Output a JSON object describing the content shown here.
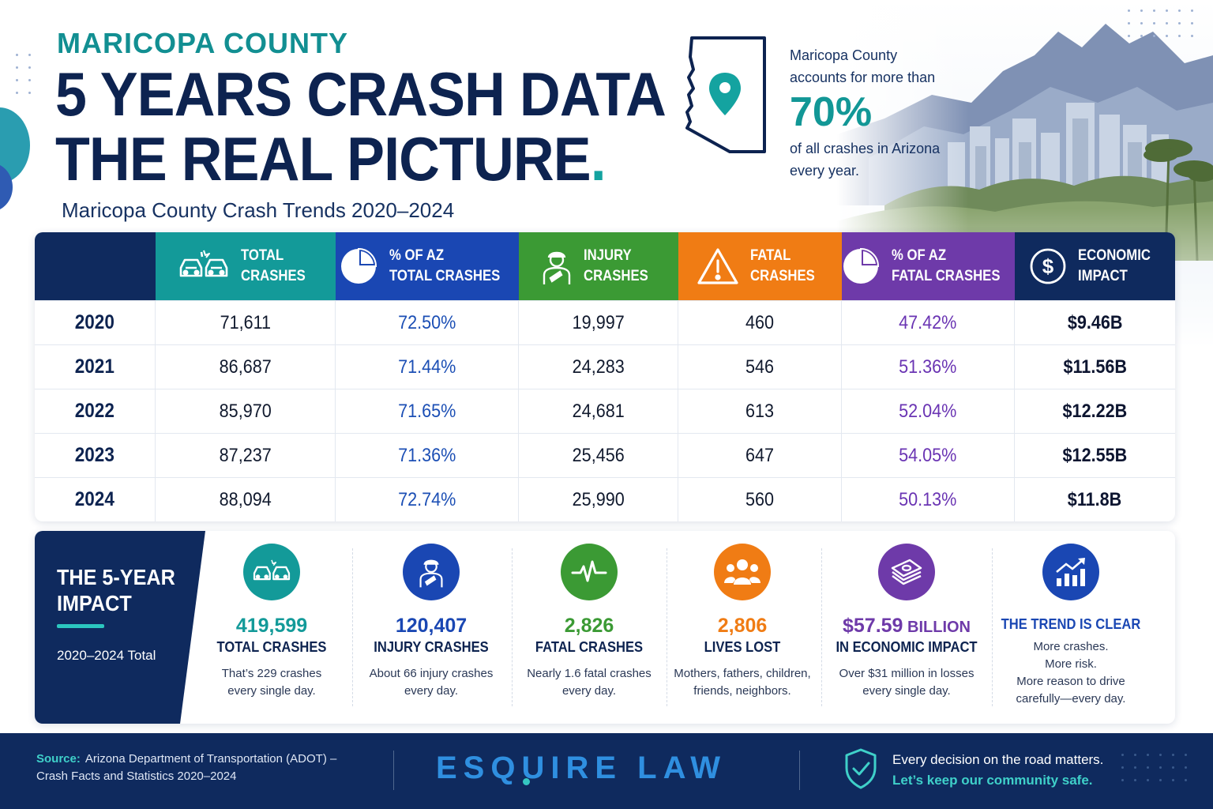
{
  "header": {
    "eyebrow": "MARICOPA COUNTY",
    "headline_line1": "5 YEARS CRASH DATA",
    "headline_line2": "THE REAL PICTURE",
    "headline_dot": ".",
    "subtitle": "Maricopa County Crash Trends 2020–2024"
  },
  "stat_callout": {
    "lead_line1": "Maricopa County",
    "lead_line2": "accounts for more than",
    "value": "70%",
    "tail_line1": "of all crashes in Arizona",
    "tail_line2": "every year.",
    "icon": "arizona-map-pin-icon"
  },
  "chart_data": {
    "type": "table",
    "columns": [
      {
        "label_line1": "TOTAL",
        "label_line2": "CRASHES",
        "icon": "car-crash-icon",
        "color": "#139a99"
      },
      {
        "label_line1": "% OF AZ",
        "label_line2": "TOTAL CRASHES",
        "icon": "pie-chart-icon",
        "color": "#1a47b3"
      },
      {
        "label_line1": "INJURY",
        "label_line2": "CRASHES",
        "icon": "injured-person-icon",
        "color": "#3b9a34"
      },
      {
        "label_line1": "FATAL",
        "label_line2": "CRASHES",
        "icon": "warning-icon",
        "color": "#f07c14"
      },
      {
        "label_line1": "% OF AZ",
        "label_line2": "FATAL CRASHES",
        "icon": "pie-chart-icon",
        "color": "#6e3aa9"
      },
      {
        "label_line1": "ECONOMIC",
        "label_line2": "IMPACT",
        "icon": "dollar-icon",
        "color": "#0f2a5e"
      }
    ],
    "rows": [
      {
        "year": "2020",
        "values": [
          "71,611",
          "72.50%",
          "19,997",
          "460",
          "47.42%",
          "$9.46B"
        ]
      },
      {
        "year": "2021",
        "values": [
          "86,687",
          "71.44%",
          "24,283",
          "546",
          "51.36%",
          "$11.56B"
        ]
      },
      {
        "year": "2022",
        "values": [
          "85,970",
          "71.65%",
          "24,681",
          "613",
          "52.04%",
          "$12.22B"
        ]
      },
      {
        "year": "2023",
        "values": [
          "87,237",
          "71.36%",
          "25,456",
          "647",
          "54.05%",
          "$12.55B"
        ]
      },
      {
        "year": "2024",
        "values": [
          "88,094",
          "72.74%",
          "25,990",
          "560",
          "50.13%",
          "$11.8B"
        ]
      }
    ]
  },
  "impact": {
    "title_line1": "THE 5-YEAR",
    "title_line2": "IMPACT",
    "subtitle": "2020–2024 Total",
    "metrics": [
      {
        "value": "419,599",
        "label": "TOTAL CRASHES",
        "desc_line1": "That’s 229 crashes",
        "desc_line2": "every single day.",
        "desc_line3": "",
        "icon": "car-crash-icon",
        "color": "#139a99"
      },
      {
        "value": "120,407",
        "label": "INJURY CRASHES",
        "desc_line1": "About 66 injury crashes",
        "desc_line2": "every day.",
        "desc_line3": "",
        "icon": "injured-person-icon",
        "color": "#1a47b3"
      },
      {
        "value": "2,826",
        "label": "FATAL CRASHES",
        "desc_line1": "Nearly 1.6 fatal crashes",
        "desc_line2": "every day.",
        "desc_line3": "",
        "icon": "heartbeat-icon",
        "color": "#3b9a34"
      },
      {
        "value": "2,806",
        "label": "LIVES LOST",
        "desc_line1": "Mothers, fathers, children,",
        "desc_line2": "friends, neighbors.",
        "desc_line3": "",
        "icon": "people-group-icon",
        "color": "#f07c14"
      },
      {
        "value": "$57.59",
        "value_suffix": " BILLION",
        "label": "IN ECONOMIC IMPACT",
        "desc_line1": "Over $31 million in losses",
        "desc_line2": "every single day.",
        "desc_line3": "",
        "icon": "money-stack-icon",
        "color": "#6e3aa9"
      },
      {
        "value": "",
        "label": "THE TREND IS CLEAR",
        "desc_line1": "More crashes.",
        "desc_line2": "More risk.",
        "desc_line3": "More reason to drive",
        "desc_line4": "carefully—every day.",
        "icon": "trend-up-icon",
        "color": "#1a47b3"
      }
    ]
  },
  "footer": {
    "source_label": "Source:",
    "source_line1": "Arizona Department of Transportation (ADOT) –",
    "source_line2": "Crash Facts and Statistics 2020–2024",
    "brand": "ESQUIRE LAW",
    "tagline1": "Every decision on the road matters.",
    "tagline2": "Let’s keep our community safe."
  }
}
